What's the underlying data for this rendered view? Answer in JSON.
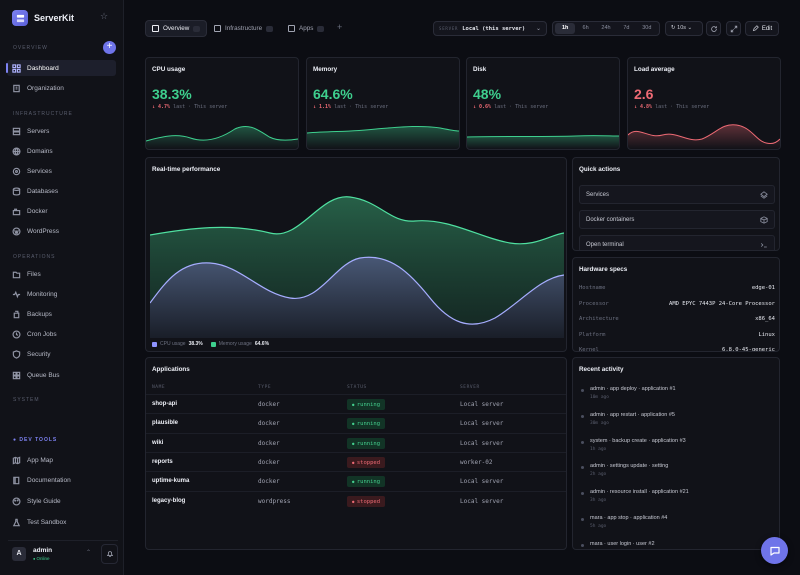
{
  "brand": {
    "name": "ServerKit"
  },
  "sidebar": {
    "sections": {
      "overview": "OVERVIEW",
      "infrastructure": "INFRASTRUCTURE",
      "operations": "OPERATIONS",
      "system": "SYSTEM",
      "devtools": "DEV TOOLS"
    },
    "overview_items": [
      {
        "label": "Dashboard",
        "icon": "dashboard-icon",
        "active": true
      },
      {
        "label": "Organization",
        "icon": "building-icon"
      }
    ],
    "infrastructure_items": [
      {
        "label": "Servers",
        "icon": "server-icon"
      },
      {
        "label": "Domains",
        "icon": "globe-icon"
      },
      {
        "label": "Services",
        "icon": "services-icon"
      },
      {
        "label": "Databases",
        "icon": "database-icon"
      },
      {
        "label": "Docker",
        "icon": "docker-icon"
      },
      {
        "label": "WordPress",
        "icon": "wordpress-icon"
      }
    ],
    "operations_items": [
      {
        "label": "Files",
        "icon": "folder-icon"
      },
      {
        "label": "Monitoring",
        "icon": "activity-icon"
      },
      {
        "label": "Backups",
        "icon": "backup-icon"
      },
      {
        "label": "Cron Jobs",
        "icon": "clock-icon"
      },
      {
        "label": "Security",
        "icon": "shield-icon"
      },
      {
        "label": "Queue Bus",
        "icon": "queue-icon"
      }
    ],
    "devtools_items": [
      {
        "label": "App Map",
        "icon": "map-icon"
      },
      {
        "label": "Documentation",
        "icon": "book-icon"
      },
      {
        "label": "Style Guide",
        "icon": "palette-icon"
      },
      {
        "label": "Test Sandbox",
        "icon": "flask-icon"
      }
    ],
    "user": {
      "initial": "A",
      "name": "admin",
      "status": "Online"
    }
  },
  "topbar": {
    "tabs": [
      "Overview",
      "Infrastructure",
      "Apps"
    ],
    "server_label": "SERVER",
    "server_value": "Local (this server)",
    "ranges": [
      "1h",
      "6h",
      "24h",
      "7d",
      "30d"
    ],
    "active_range": "1h",
    "refresh": "↻ 10s",
    "edit_label": "Edit"
  },
  "kpis": [
    {
      "title": "CPU usage",
      "value": "38.3%",
      "delta": "↓ 4.7%",
      "rest": " last · This server",
      "value_color": "#3ecf8e",
      "delta_color": "#ee6a74"
    },
    {
      "title": "Memory",
      "value": "64.6%",
      "delta": "↓ 1.1%",
      "rest": " last · This server",
      "value_color": "#3ecf8e",
      "delta_color": "#ee6a74"
    },
    {
      "title": "Disk",
      "value": "48%",
      "delta": "↓ 0.6%",
      "rest": " last · This server",
      "value_color": "#3ecf8e",
      "delta_color": "#ee6a74"
    },
    {
      "title": "Load average",
      "value": "2.6",
      "delta": "↓ 4.8%",
      "rest": " last · This server",
      "value_color": "#ee6a74",
      "delta_color": "#ee6a74"
    }
  ],
  "performance": {
    "title": "Real-time performance",
    "legend": [
      {
        "label": "CPU usage",
        "value": "38.3%",
        "color": "#8f94ff"
      },
      {
        "label": "Memory usage",
        "value": "64.6%",
        "color": "#3ecf8e"
      }
    ]
  },
  "quick_actions": {
    "title": "Quick actions",
    "items": [
      "Services",
      "Docker containers",
      "Open terminal"
    ]
  },
  "hardware": {
    "title": "Hardware specs",
    "rows": [
      {
        "k": "Hostname",
        "v": "edge-01"
      },
      {
        "k": "Processor",
        "v": "AMD EPYC 7443P 24-Core Processor"
      },
      {
        "k": "Architecture",
        "v": "x86_64"
      },
      {
        "k": "Platform",
        "v": "Linux"
      },
      {
        "k": "Kernel",
        "v": "6.8.0-45-generic"
      }
    ]
  },
  "applications": {
    "title": "Applications",
    "headers": [
      "NAME",
      "TYPE",
      "STATUS",
      "SERVER"
    ],
    "rows": [
      {
        "name": "shop-api",
        "type": "docker",
        "status": "running",
        "server": "Local server"
      },
      {
        "name": "plausible",
        "type": "docker",
        "status": "running",
        "server": "Local server"
      },
      {
        "name": "wiki",
        "type": "docker",
        "status": "running",
        "server": "Local server"
      },
      {
        "name": "reports",
        "type": "docker",
        "status": "stopped",
        "server": "worker-02"
      },
      {
        "name": "uptime-kuma",
        "type": "docker",
        "status": "running",
        "server": "Local server"
      },
      {
        "name": "legacy-blog",
        "type": "wordpress",
        "status": "stopped",
        "server": "Local server"
      }
    ]
  },
  "activity": {
    "title": "Recent activity",
    "items": [
      {
        "text": "admin · app deploy · application #1",
        "time": "10m ago"
      },
      {
        "text": "admin · app restart · application #5",
        "time": "30m ago"
      },
      {
        "text": "system · backup create · application #3",
        "time": "1h ago"
      },
      {
        "text": "admin · settings update · setting",
        "time": "2h ago"
      },
      {
        "text": "admin · resource install · application #21",
        "time": "3h ago"
      },
      {
        "text": "mara · app stop · application #4",
        "time": "5h ago"
      },
      {
        "text": "mara · user login · user #2",
        "time": ""
      }
    ]
  }
}
